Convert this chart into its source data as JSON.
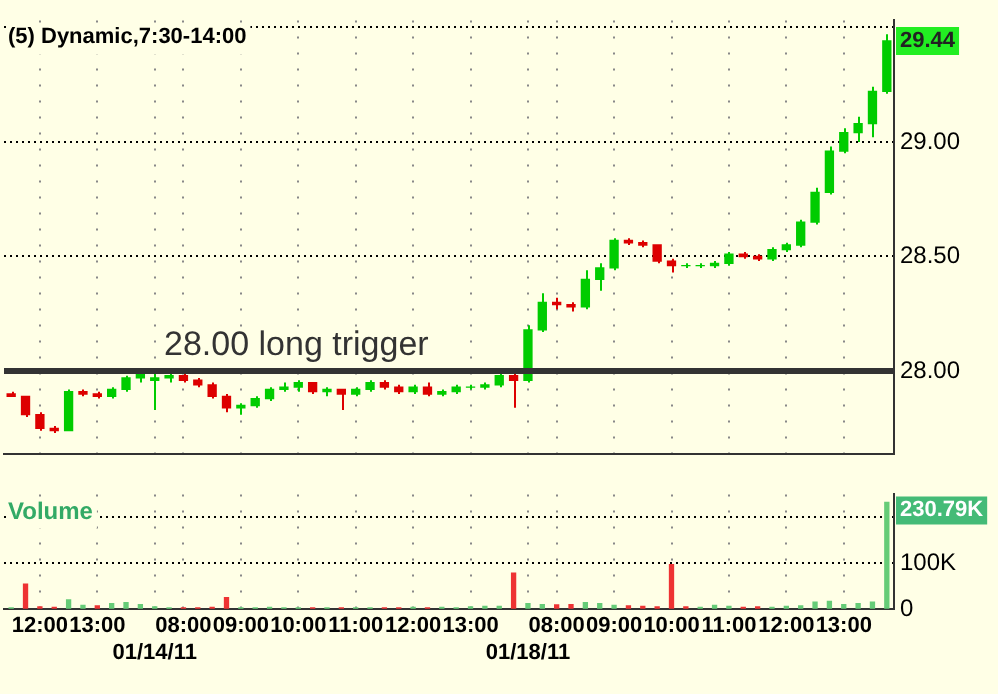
{
  "chart_data": [
    {
      "type": "candlestick",
      "title": "(5) Dynamic,7:30-14:00",
      "categories": [
        null,
        null,
        null,
        null,
        null,
        null,
        null,
        null,
        null,
        null,
        null,
        null,
        null,
        null,
        null,
        null,
        null,
        null,
        null,
        null,
        null,
        null,
        null,
        null,
        null,
        null,
        null,
        null,
        null,
        null,
        null,
        null,
        null,
        null,
        null,
        null,
        null,
        null,
        null,
        null,
        null,
        null,
        null,
        null,
        null,
        null,
        null,
        null,
        null,
        null,
        null,
        null,
        null,
        null,
        null,
        null,
        null,
        null,
        null,
        null,
        null,
        null
      ],
      "ohlc": [
        [
          27.9,
          27.91,
          27.89,
          27.89
        ],
        [
          27.89,
          27.89,
          27.8,
          27.81
        ],
        [
          27.81,
          27.82,
          27.74,
          27.75
        ],
        [
          27.75,
          27.76,
          27.73,
          27.74
        ],
        [
          27.74,
          27.92,
          27.74,
          27.91
        ],
        [
          27.91,
          27.92,
          27.89,
          27.9
        ],
        [
          27.9,
          27.91,
          27.88,
          27.89
        ],
        [
          27.89,
          27.93,
          27.88,
          27.92
        ],
        [
          27.92,
          27.98,
          27.91,
          27.97
        ],
        [
          27.97,
          28.0,
          27.95,
          27.99
        ],
        [
          27.96,
          27.99,
          27.83,
          27.97
        ],
        [
          27.97,
          28.0,
          27.95,
          27.98
        ],
        [
          27.98,
          27.99,
          27.95,
          27.96
        ],
        [
          27.96,
          27.97,
          27.93,
          27.94
        ],
        [
          27.94,
          27.95,
          27.88,
          27.89
        ],
        [
          27.89,
          27.9,
          27.82,
          27.84
        ],
        [
          27.84,
          27.86,
          27.81,
          27.85
        ],
        [
          27.85,
          27.89,
          27.84,
          27.88
        ],
        [
          27.88,
          27.93,
          27.87,
          27.92
        ],
        [
          27.92,
          27.95,
          27.91,
          27.93
        ],
        [
          27.93,
          27.96,
          27.91,
          27.95
        ],
        [
          27.95,
          27.95,
          27.9,
          27.91
        ],
        [
          27.91,
          27.93,
          27.89,
          27.92
        ],
        [
          27.92,
          27.92,
          27.83,
          27.9
        ],
        [
          27.9,
          27.93,
          27.89,
          27.92
        ],
        [
          27.92,
          27.96,
          27.91,
          27.95
        ],
        [
          27.95,
          27.96,
          27.92,
          27.93
        ],
        [
          27.93,
          27.94,
          27.9,
          27.91
        ],
        [
          27.91,
          27.94,
          27.9,
          27.93
        ],
        [
          27.93,
          27.95,
          27.89,
          27.9
        ],
        [
          27.9,
          27.92,
          27.89,
          27.91
        ],
        [
          27.91,
          27.94,
          27.9,
          27.93
        ],
        [
          27.93,
          27.94,
          27.92,
          27.93
        ],
        [
          27.93,
          27.95,
          27.92,
          27.94
        ],
        [
          27.94,
          27.99,
          27.93,
          27.98
        ],
        [
          27.98,
          28.0,
          27.84,
          27.96
        ],
        [
          27.96,
          28.2,
          27.95,
          28.18
        ],
        [
          28.18,
          28.34,
          28.17,
          28.3
        ],
        [
          28.3,
          28.32,
          28.27,
          28.29
        ],
        [
          28.29,
          28.3,
          28.26,
          28.28
        ],
        [
          28.28,
          28.44,
          28.27,
          28.4
        ],
        [
          28.4,
          28.47,
          28.35,
          28.45
        ],
        [
          28.45,
          28.58,
          28.44,
          28.57
        ],
        [
          28.57,
          28.58,
          28.55,
          28.56
        ],
        [
          28.56,
          28.57,
          28.54,
          28.55
        ],
        [
          28.55,
          28.55,
          28.47,
          28.48
        ],
        [
          28.48,
          28.49,
          28.43,
          28.46
        ],
        [
          28.46,
          28.47,
          28.45,
          28.46
        ],
        [
          28.46,
          28.47,
          28.45,
          28.46
        ],
        [
          28.46,
          28.48,
          28.45,
          28.47
        ],
        [
          28.47,
          28.52,
          28.46,
          28.51
        ],
        [
          28.51,
          28.52,
          28.49,
          28.5
        ],
        [
          28.5,
          28.51,
          28.48,
          28.49
        ],
        [
          28.49,
          28.54,
          28.48,
          28.53
        ],
        [
          28.53,
          28.56,
          28.52,
          28.55
        ],
        [
          28.55,
          28.66,
          28.54,
          28.65
        ],
        [
          28.65,
          28.8,
          28.64,
          28.78
        ],
        [
          28.78,
          28.98,
          28.77,
          28.96
        ],
        [
          28.96,
          29.06,
          28.95,
          29.04
        ],
        [
          29.04,
          29.11,
          29.0,
          29.08
        ],
        [
          29.08,
          29.24,
          29.02,
          29.22
        ],
        [
          29.22,
          29.47,
          29.21,
          29.44
        ]
      ],
      "ylim": [
        27.64,
        29.53
      ],
      "yticks": [
        {
          "value": 28,
          "label": "28.00"
        },
        {
          "value": 28.5,
          "label": "28.50"
        },
        {
          "value": 29,
          "label": "29.00"
        },
        {
          "value": 29.5,
          "label": null
        }
      ],
      "grid": true,
      "tick_labels": "y",
      "ref_lines": [
        {
          "axis": "y",
          "value": 28,
          "label": "28.00 long trigger",
          "color": "#333333"
        }
      ],
      "annotations": [
        {
          "text": "29.44",
          "y": 29.44
        }
      ]
    },
    {
      "type": "bar",
      "title": "Volume",
      "categories": [
        null,
        null,
        "12:00",
        null,
        null,
        null,
        "13:00",
        null,
        null,
        null,
        "01/14/11",
        null,
        "08:00",
        null,
        null,
        null,
        "09:00",
        null,
        null,
        null,
        "10:00",
        null,
        null,
        null,
        "11:00",
        null,
        null,
        null,
        "12:00",
        null,
        null,
        null,
        "13:00",
        null,
        null,
        null,
        "01/18/11",
        null,
        "08:00",
        null,
        null,
        null,
        "09:00",
        null,
        null,
        null,
        "10:00",
        null,
        null,
        null,
        "11:00",
        null,
        null,
        null,
        "12:00",
        null,
        null,
        null,
        "13:00",
        null,
        null,
        null
      ],
      "values": [
        3000,
        54000,
        5000,
        4000,
        20000,
        8000,
        7000,
        12000,
        14000,
        10000,
        5000,
        3000,
        3000,
        3000,
        4000,
        25000,
        3000,
        3000,
        4000,
        3000,
        3000,
        3000,
        3000,
        3000,
        3000,
        3000,
        3000,
        3000,
        4000,
        3000,
        4000,
        3000,
        5000,
        6000,
        6000,
        78000,
        12000,
        10000,
        9000,
        10000,
        14000,
        12000,
        8000,
        7000,
        6000,
        5000,
        96000,
        5000,
        4000,
        8000,
        6000,
        4000,
        5000,
        4000,
        6000,
        7000,
        15000,
        17000,
        10000,
        12000,
        15000,
        230790
      ],
      "colors": [
        "#66cc77",
        "#ee3333",
        "#ee3333",
        "#ee3333",
        "#66cc77",
        "#66cc77",
        "#ee3333",
        "#66cc77",
        "#66cc77",
        "#66cc77",
        "#66cc77",
        "#66cc77",
        "#ee3333",
        "#ee3333",
        "#ee3333",
        "#ee3333",
        "#66cc77",
        "#66cc77",
        "#66cc77",
        "#66cc77",
        "#66cc77",
        "#ee3333",
        "#66cc77",
        "#ee3333",
        "#66cc77",
        "#66cc77",
        "#ee3333",
        "#ee3333",
        "#66cc77",
        "#ee3333",
        "#66cc77",
        "#66cc77",
        "#66cc77",
        "#66cc77",
        "#66cc77",
        "#ee3333",
        "#66cc77",
        "#66cc77",
        "#ee3333",
        "#ee3333",
        "#66cc77",
        "#66cc77",
        "#66cc77",
        "#ee3333",
        "#ee3333",
        "#ee3333",
        "#ee3333",
        "#ee3333",
        "#66cc77",
        "#66cc77",
        "#66cc77",
        "#ee3333",
        "#ee3333",
        "#66cc77",
        "#66cc77",
        "#66cc77",
        "#66cc77",
        "#66cc77",
        "#66cc77",
        "#66cc77",
        "#66cc77",
        "#66cc77"
      ],
      "ylim": [
        0,
        248000
      ],
      "yticks": [
        0,
        {
          "value": 100000,
          "label": "100K"
        },
        {
          "value": 200000,
          "label": null
        }
      ],
      "grid": true,
      "annotations": [
        "230.79K"
      ]
    }
  ]
}
